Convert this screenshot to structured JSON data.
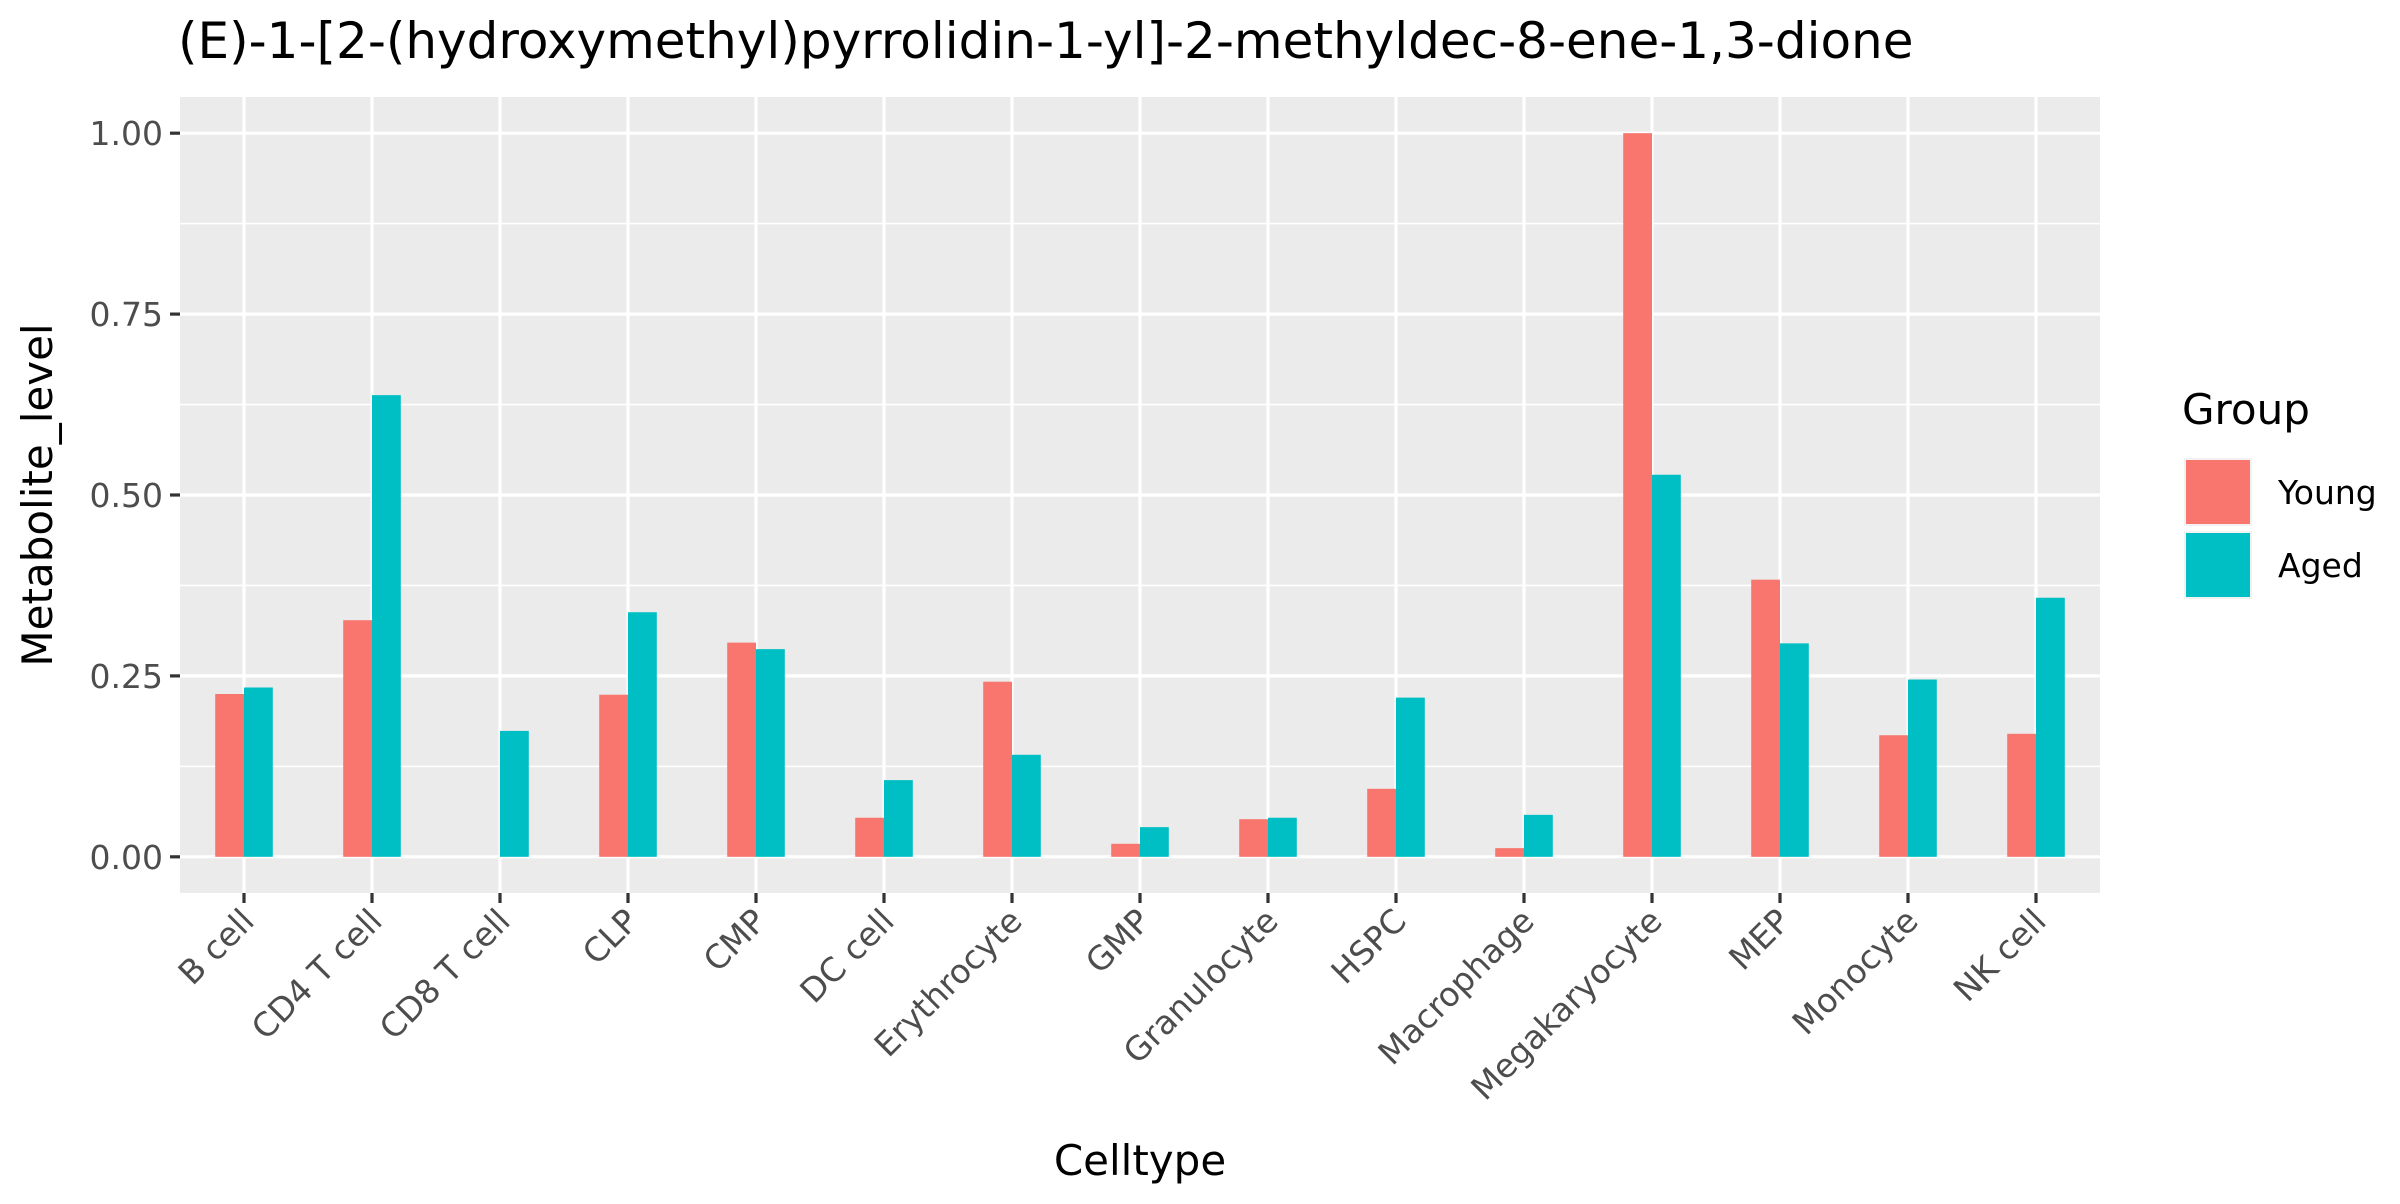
{
  "chart_data": {
    "type": "bar",
    "title": "(E)-1-[2-(hydroxymethyl)pyrrolidin-1-yl]-2-methyldec-8-ene-1,3-dione",
    "xlabel": "Celltype",
    "ylabel": "Metabolite_level",
    "ylim": [
      -0.05,
      1.05
    ],
    "yticks": [
      0.0,
      0.25,
      0.5,
      0.75,
      1.0
    ],
    "ytick_labels": [
      "0.00",
      "0.25",
      "0.50",
      "0.75",
      "1.00"
    ],
    "categories": [
      "B cell",
      "CD4 T cell",
      "CD8 T cell",
      "CLP",
      "CMP",
      "DC cell",
      "Erythrocyte",
      "GMP",
      "Granulocyte",
      "HSPC",
      "Macrophage",
      "Megakaryocyte",
      "MEP",
      "Monocyte",
      "NK cell"
    ],
    "legend_title": "Group",
    "legend_position": "right",
    "grid": true,
    "series": [
      {
        "name": "Young",
        "color": "#F8766D",
        "values": [
          0.225,
          0.327,
          null,
          0.224,
          0.296,
          0.054,
          0.242,
          0.018,
          0.052,
          0.094,
          0.012,
          1.0,
          0.383,
          0.168,
          0.17
        ]
      },
      {
        "name": "Aged",
        "color": "#00BFC4",
        "values": [
          0.234,
          0.638,
          0.174,
          0.338,
          0.287,
          0.106,
          0.141,
          0.041,
          0.054,
          0.22,
          0.058,
          0.528,
          0.295,
          0.245,
          0.358
        ]
      }
    ]
  }
}
